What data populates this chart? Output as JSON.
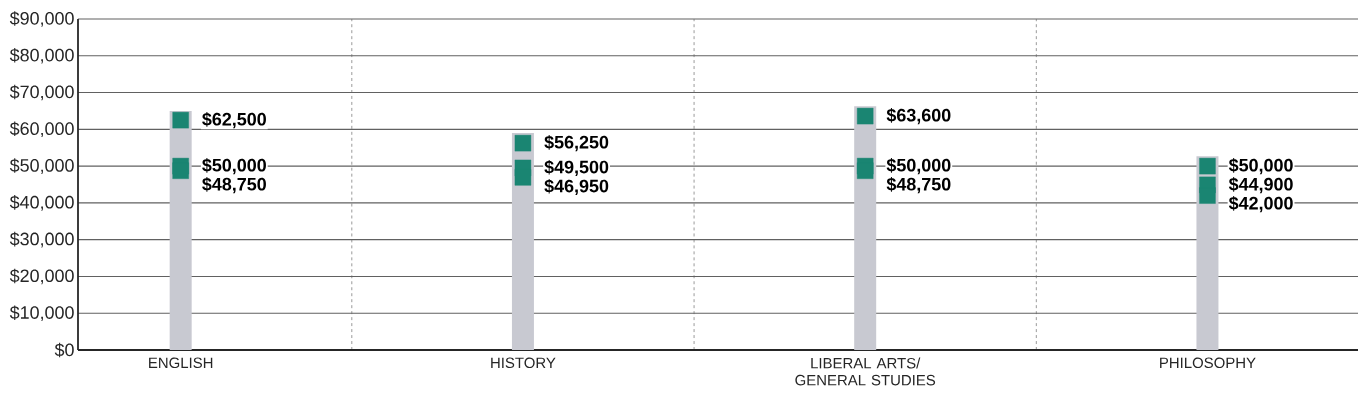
{
  "chart_data": {
    "type": "bar",
    "categories": [
      "ENGLISH",
      "HISTORY",
      "LIBERAL ARTS/ GENERAL STUDIES",
      "PHILOSOPHY"
    ],
    "ylim": [
      0,
      90000
    ],
    "yticks": [
      {
        "value": 0,
        "label": "$0"
      },
      {
        "value": 10000,
        "label": "$10,000"
      },
      {
        "value": 20000,
        "label": "$20,000"
      },
      {
        "value": 30000,
        "label": "$30,000"
      },
      {
        "value": 40000,
        "label": "$40,000"
      },
      {
        "value": 50000,
        "label": "$50,000"
      },
      {
        "value": 60000,
        "label": "$60,000"
      },
      {
        "value": 70000,
        "label": "$70,000"
      },
      {
        "value": 80000,
        "label": "$80,000"
      },
      {
        "value": 90000,
        "label": "$90,000"
      }
    ],
    "grid": true,
    "marker": "square",
    "series": [
      {
        "color": "#c8c9d1",
        "values": [
          65000,
          59000,
          66300,
          52700
        ]
      },
      {
        "type": "scatter",
        "color": "#1a8572",
        "values": [
          62500,
          56250,
          63600,
          50000
        ],
        "value_labels": [
          "$62,500",
          "$56,250",
          "$63,600",
          "$50,000"
        ]
      },
      {
        "type": "scatter",
        "color": "#1a8572",
        "values": [
          50000,
          49500,
          50000,
          44900
        ],
        "value_labels": [
          "$50,000",
          "$49,500",
          "$50,000",
          "$44,900"
        ]
      },
      {
        "type": "scatter",
        "color": "#1a8572",
        "values": [
          48750,
          46950,
          48750,
          42000
        ],
        "value_labels": [
          "$48,750",
          "$46,950",
          "$48,750",
          "$42,000"
        ]
      }
    ]
  }
}
